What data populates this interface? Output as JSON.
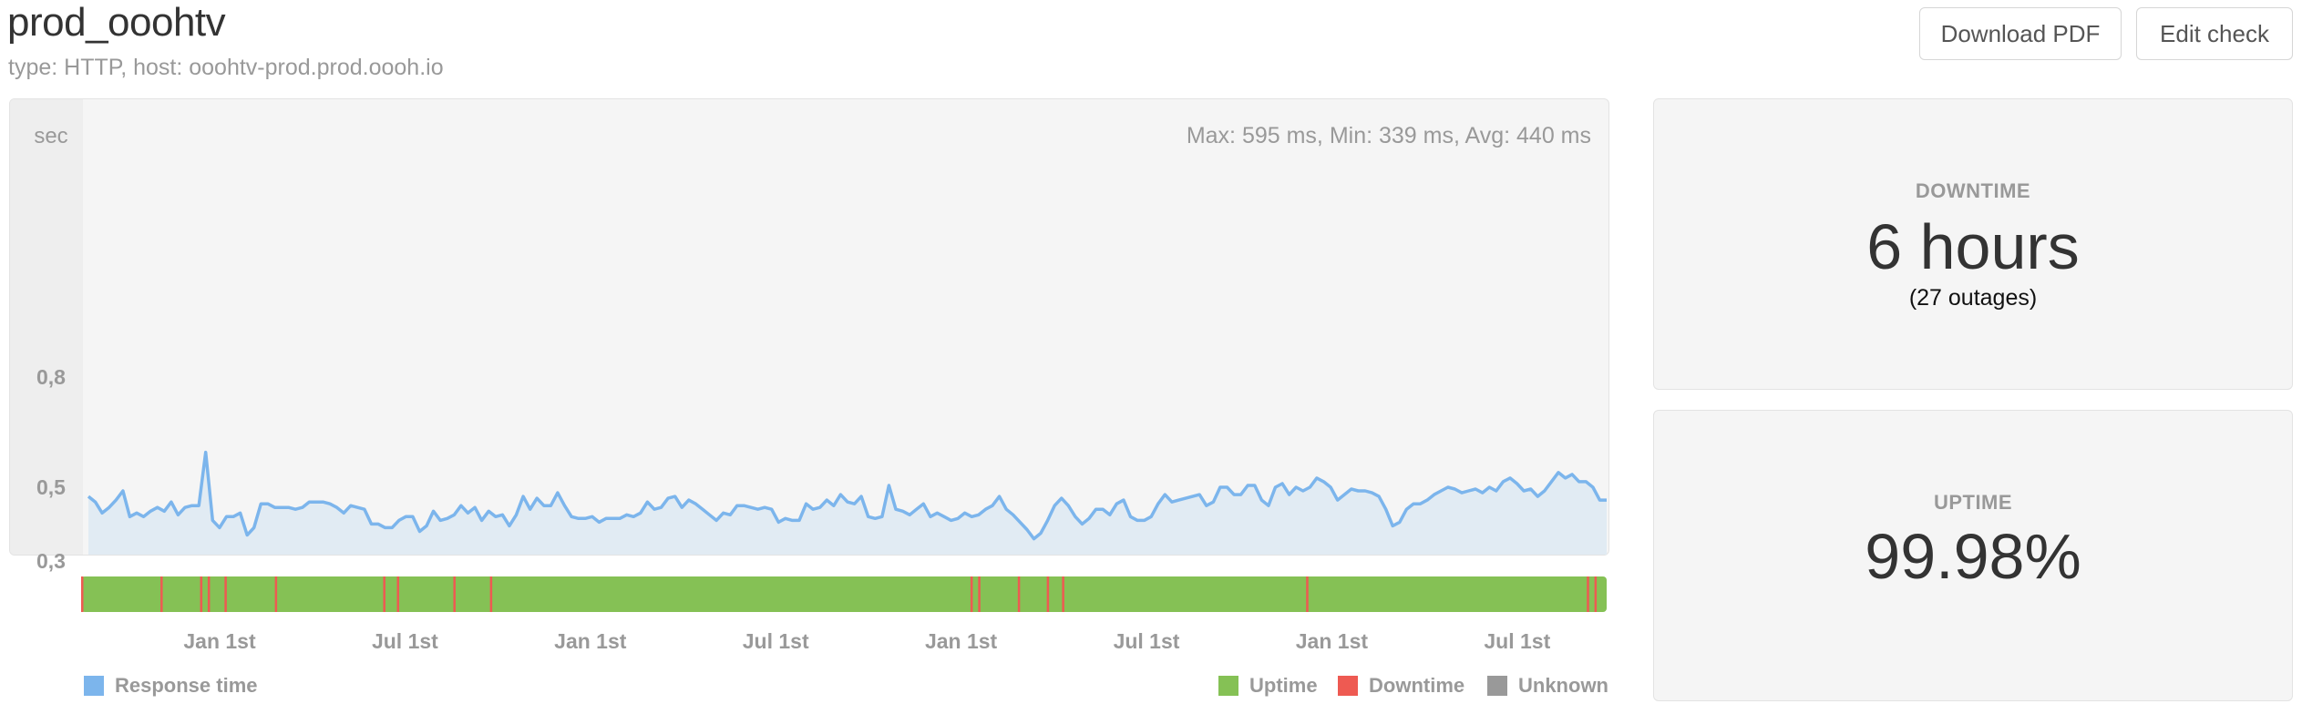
{
  "header": {
    "title": "prod_ooohtv",
    "subtitle": "type: HTTP, host: ooohtv-prod.prod.oooh.io"
  },
  "toolbar": {
    "download_label": "Download PDF",
    "edit_label": "Edit check"
  },
  "chart_data": {
    "type": "line",
    "ylabel": "sec",
    "stats_label": "Max: 595 ms, Min: 339 ms, Avg: 440 ms",
    "y_ticks": [
      "0,8",
      "0,5",
      "0,3"
    ],
    "ylim": [
      0.0,
      0.95
    ],
    "series": [
      {
        "values": [
          0.475,
          0.46,
          0.43,
          0.445,
          0.465,
          0.49,
          0.42,
          0.43,
          0.42,
          0.435,
          0.445,
          0.435,
          0.46,
          0.425,
          0.445,
          0.45,
          0.45,
          0.595,
          0.41,
          0.39,
          0.42,
          0.42,
          0.43,
          0.37,
          0.39,
          0.455,
          0.455,
          0.445,
          0.445,
          0.445,
          0.44,
          0.445,
          0.46,
          0.46,
          0.46,
          0.455,
          0.445,
          0.43,
          0.45,
          0.445,
          0.44,
          0.4,
          0.4,
          0.39,
          0.39,
          0.41,
          0.42,
          0.42,
          0.38,
          0.395,
          0.435,
          0.41,
          0.415,
          0.425,
          0.45,
          0.43,
          0.445,
          0.41,
          0.435,
          0.42,
          0.425,
          0.395,
          0.425,
          0.475,
          0.44,
          0.47,
          0.45,
          0.45,
          0.485,
          0.45,
          0.42,
          0.415,
          0.415,
          0.42,
          0.405,
          0.415,
          0.415,
          0.415,
          0.425,
          0.42,
          0.43,
          0.46,
          0.44,
          0.445,
          0.47,
          0.475,
          0.445,
          0.465,
          0.455,
          0.44,
          0.425,
          0.41,
          0.43,
          0.425,
          0.45,
          0.45,
          0.445,
          0.44,
          0.445,
          0.44,
          0.405,
          0.415,
          0.41,
          0.41,
          0.455,
          0.44,
          0.445,
          0.465,
          0.45,
          0.48,
          0.46,
          0.455,
          0.475,
          0.42,
          0.415,
          0.42,
          0.505,
          0.44,
          0.435,
          0.425,
          0.44,
          0.455,
          0.42,
          0.43,
          0.42,
          0.41,
          0.415,
          0.43,
          0.42,
          0.425,
          0.44,
          0.45,
          0.475,
          0.44,
          0.425,
          0.405,
          0.385,
          0.36,
          0.375,
          0.41,
          0.45,
          0.47,
          0.45,
          0.42,
          0.4,
          0.415,
          0.44,
          0.44,
          0.425,
          0.455,
          0.465,
          0.42,
          0.41,
          0.41,
          0.42,
          0.455,
          0.48,
          0.46,
          0.465,
          0.47,
          0.475,
          0.48,
          0.45,
          0.46,
          0.5,
          0.5,
          0.48,
          0.48,
          0.505,
          0.505,
          0.465,
          0.45,
          0.5,
          0.51,
          0.48,
          0.5,
          0.49,
          0.5,
          0.525,
          0.515,
          0.5,
          0.465,
          0.48,
          0.495,
          0.49,
          0.49,
          0.485,
          0.475,
          0.44,
          0.395,
          0.405,
          0.44,
          0.455,
          0.455,
          0.465,
          0.48,
          0.49,
          0.5,
          0.495,
          0.485,
          0.49,
          0.495,
          0.485,
          0.5,
          0.49,
          0.515,
          0.525,
          0.51,
          0.49,
          0.495,
          0.475,
          0.49,
          0.515,
          0.54,
          0.525,
          0.535,
          0.515,
          0.515,
          0.5,
          0.465,
          0.465
        ]
      }
    ],
    "x_tick_labels": [
      "Jan 1st",
      "Jul 1st",
      "Jan 1st",
      "Jul 1st",
      "Jan 1st",
      "Jul 1st",
      "Jan 1st",
      "Jul 1st"
    ],
    "line_color": "#7cb5ec",
    "fill_color": "#e1ebf3",
    "downtime_markers": [
      0.0,
      0.052,
      0.078,
      0.083,
      0.094,
      0.127,
      0.198,
      0.207,
      0.244,
      0.268,
      0.583,
      0.588,
      0.614,
      0.633,
      0.643,
      0.803,
      0.987,
      0.992
    ]
  },
  "status_colors": {
    "uptime": "#85c155",
    "downtime": "#ee5a52",
    "unknown": "#999999",
    "response": "#7cb5ec"
  },
  "legend": {
    "response_label": "Response time",
    "uptime_label": "Uptime",
    "downtime_label": "Downtime",
    "unknown_label": "Unknown"
  },
  "downtime_card": {
    "label": "DOWNTIME",
    "value": "6 hours",
    "sub": "(27 outages)"
  },
  "uptime_card": {
    "label": "UPTIME",
    "value": "99.98%"
  }
}
